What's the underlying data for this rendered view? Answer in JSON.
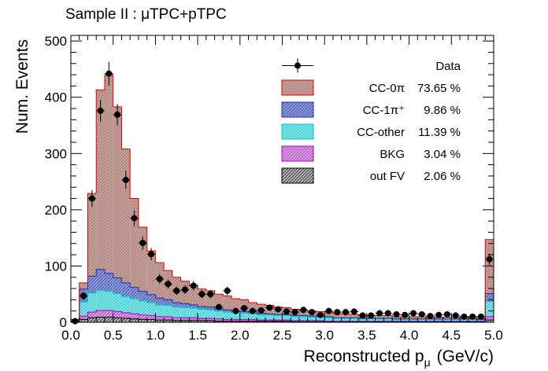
{
  "chart_data": {
    "type": "bar",
    "title": "Sample II : μTPC+pTPC",
    "xlabel": "Reconstructed p",
    "xlabel_subscript": "μ",
    "xlabel_unit": "(GeV/c)",
    "ylabel": "Num. Events",
    "xlim": [
      0,
      5
    ],
    "ylim": [
      0,
      510
    ],
    "bin_width": 0.1,
    "x_ticks": [
      "0.0",
      "0.5",
      "1.0",
      "1.5",
      "2.0",
      "2.5",
      "3.0",
      "3.5",
      "4.0",
      "4.5",
      "5.0"
    ],
    "x_tick_values": [
      0,
      0.5,
      1.0,
      1.5,
      2.0,
      2.5,
      3.0,
      3.5,
      4.0,
      4.5,
      5.0
    ],
    "y_ticks": [
      "0",
      "100",
      "200",
      "300",
      "400",
      "500"
    ],
    "y_tick_values": [
      0,
      100,
      200,
      300,
      400,
      500
    ],
    "x_bin_centers": [
      0.05,
      0.15,
      0.25,
      0.35,
      0.45,
      0.55,
      0.65,
      0.75,
      0.85,
      0.95,
      1.05,
      1.15,
      1.25,
      1.35,
      1.45,
      1.55,
      1.65,
      1.75,
      1.85,
      1.95,
      2.05,
      2.15,
      2.25,
      2.35,
      2.45,
      2.55,
      2.65,
      2.75,
      2.85,
      2.95,
      3.05,
      3.15,
      3.25,
      3.35,
      3.45,
      3.55,
      3.65,
      3.75,
      3.85,
      3.95,
      4.05,
      4.15,
      4.25,
      4.35,
      4.45,
      4.55,
      4.65,
      4.75,
      4.85,
      4.95
    ],
    "series": [
      {
        "name": "out FV",
        "color": "#555555",
        "values": [
          1,
          5,
          8,
          9,
          9,
          8,
          7,
          6,
          5,
          5,
          4,
          4,
          3,
          3,
          3,
          3,
          3,
          2,
          2,
          2,
          2,
          2,
          2,
          2,
          2,
          2,
          1,
          1,
          1,
          1,
          1,
          1,
          1,
          1,
          1,
          1,
          1,
          1,
          1,
          1,
          1,
          1,
          1,
          1,
          1,
          1,
          1,
          1,
          1,
          4
        ]
      },
      {
        "name": "BKG",
        "color": "#cc66dd",
        "values": [
          1,
          6,
          10,
          12,
          12,
          11,
          10,
          9,
          8,
          7,
          6,
          6,
          5,
          5,
          5,
          4,
          4,
          4,
          3,
          3,
          3,
          3,
          2,
          2,
          2,
          2,
          2,
          2,
          2,
          2,
          1,
          1,
          1,
          1,
          1,
          1,
          1,
          1,
          1,
          1,
          1,
          1,
          1,
          1,
          1,
          1,
          1,
          1,
          1,
          6
        ]
      },
      {
        "name": "CC-other",
        "color": "#33dddd",
        "values": [
          1,
          25,
          34,
          36,
          34,
          32,
          29,
          27,
          25,
          23,
          21,
          20,
          19,
          18,
          17,
          16,
          15,
          14,
          13,
          12,
          11,
          10,
          9,
          9,
          8,
          8,
          7,
          7,
          6,
          6,
          6,
          5,
          5,
          5,
          4,
          4,
          4,
          4,
          3,
          3,
          3,
          3,
          3,
          3,
          3,
          3,
          3,
          3,
          2,
          27
        ]
      },
      {
        "name": "CC-1π⁺",
        "color": "#4466cc",
        "values": [
          1,
          23,
          30,
          37,
          32,
          28,
          24,
          20,
          17,
          14,
          12,
          10,
          8,
          7,
          6,
          5,
          5,
          4,
          4,
          3,
          3,
          3,
          3,
          2,
          2,
          2,
          2,
          2,
          2,
          2,
          2,
          1,
          1,
          1,
          1,
          1,
          1,
          1,
          1,
          1,
          1,
          1,
          1,
          1,
          1,
          1,
          1,
          1,
          1,
          14
        ]
      },
      {
        "name": "CC-0π",
        "color": "#c08c84",
        "values": [
          1,
          11,
          147,
          319,
          353,
          304,
          238,
          158,
          114,
          78,
          63,
          52,
          45,
          40,
          35,
          31,
          29,
          26,
          25,
          22,
          21,
          17,
          16,
          15,
          13,
          12,
          11,
          9,
          9,
          8,
          8,
          7,
          7,
          6,
          6,
          5,
          5,
          5,
          4,
          4,
          4,
          4,
          3,
          3,
          3,
          3,
          3,
          2,
          2,
          96
        ]
      }
    ],
    "data_points": {
      "name": "Data",
      "x": [
        0.05,
        0.15,
        0.25,
        0.35,
        0.45,
        0.55,
        0.65,
        0.75,
        0.85,
        0.95,
        1.05,
        1.15,
        1.25,
        1.35,
        1.45,
        1.55,
        1.65,
        1.75,
        1.85,
        1.95,
        2.05,
        2.15,
        2.25,
        2.35,
        2.45,
        2.55,
        2.65,
        2.75,
        2.85,
        2.95,
        3.05,
        3.15,
        3.25,
        3.35,
        3.45,
        3.55,
        3.65,
        3.75,
        3.85,
        3.95,
        4.05,
        4.15,
        4.25,
        4.35,
        4.45,
        4.55,
        4.65,
        4.75,
        4.85,
        4.95
      ],
      "values": [
        2,
        47,
        220,
        376,
        442,
        369,
        253,
        185,
        141,
        121,
        77,
        68,
        56,
        58,
        65,
        50,
        50,
        27,
        56,
        20,
        25,
        20,
        21,
        26,
        23,
        19,
        18,
        22,
        18,
        13,
        20,
        18,
        18,
        19,
        12,
        12,
        16,
        16,
        14,
        13,
        16,
        14,
        11,
        13,
        14,
        12,
        10,
        10,
        10,
        112
      ]
    },
    "legend": [
      {
        "label": "Data",
        "pct": ""
      },
      {
        "label": "CC-0π",
        "pct": "73.65 %"
      },
      {
        "label": "CC-1π⁺",
        "pct": "9.86 %"
      },
      {
        "label": "CC-other",
        "pct": "11.39 %"
      },
      {
        "label": "BKG",
        "pct": "3.04 %"
      },
      {
        "label": "out FV",
        "pct": "2.06 %"
      }
    ],
    "legend_position": "top-right",
    "grid": false
  }
}
